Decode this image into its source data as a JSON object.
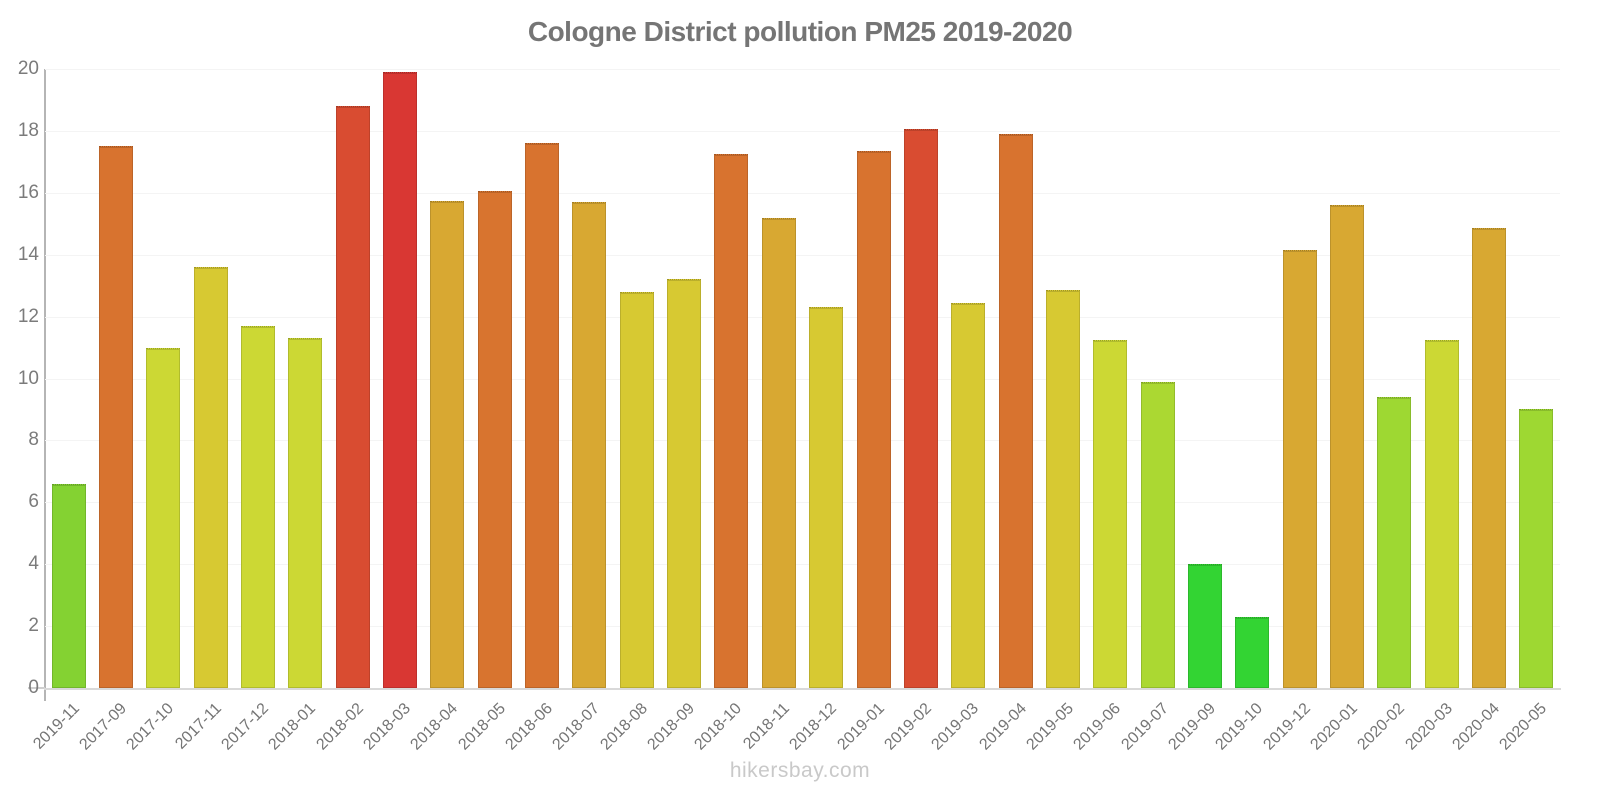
{
  "page": {
    "title": "Cologne District pollution PM25 2019-2020",
    "watermark": "hikersbay.com"
  },
  "chart_data": {
    "type": "bar",
    "title": "Cologne District pollution PM25 2019-2020",
    "categories": [
      "2019-11",
      "2017-09",
      "2017-10",
      "2017-11",
      "2017-12",
      "2018-01",
      "2018-02",
      "2018-03",
      "2018-04",
      "2018-05",
      "2018-06",
      "2018-07",
      "2018-08",
      "2018-09",
      "2018-10",
      "2018-11",
      "2018-12",
      "2019-01",
      "2019-02",
      "2019-03",
      "2019-04",
      "2019-05",
      "2019-06",
      "2019-07",
      "2019-09",
      "2019-10",
      "2019-12",
      "2020-01",
      "2020-02",
      "2020-03",
      "2020-04",
      "2020-05"
    ],
    "values": [
      6.6,
      17.5,
      11.0,
      13.6,
      11.7,
      11.3,
      18.8,
      19.9,
      15.75,
      16.05,
      17.6,
      15.7,
      12.8,
      13.2,
      17.25,
      15.2,
      12.3,
      17.35,
      18.05,
      12.45,
      17.9,
      12.85,
      11.25,
      9.9,
      4.0,
      2.3,
      14.15,
      15.6,
      9.4,
      11.25,
      14.85,
      9.0
    ],
    "bar_colors": [
      "#84d232",
      "#d8732f",
      "#ccd834",
      "#d7c932",
      "#ccd834",
      "#ccd834",
      "#d94c31",
      "#d93733",
      "#d8a832",
      "#d8742f",
      "#d8732f",
      "#d8a832",
      "#d7c932",
      "#d7c932",
      "#d8732f",
      "#d8a832",
      "#d7c932",
      "#d8732f",
      "#d94c31",
      "#d7c932",
      "#d8732f",
      "#d7c932",
      "#ccd834",
      "#abd832",
      "#33d433",
      "#33d433",
      "#d8a832",
      "#d8a832",
      "#9ed832",
      "#ccd834",
      "#d8a832",
      "#9ed832"
    ],
    "xlabel": "",
    "ylabel": "",
    "ylim": [
      0,
      20
    ],
    "yticks": [
      0,
      2,
      4,
      6,
      8,
      10,
      12,
      14,
      16,
      18,
      20
    ],
    "grid": "faint horizontal gridlines at even values",
    "legend_position": "none",
    "x_tick_style": "rotated 45deg",
    "colors": {
      "title_text": "#757575",
      "axis_line": "#b5b5b5",
      "baseline": "#d9d9d9",
      "tick_text": "#7b7b7b",
      "watermark_text": "#c9c9c9",
      "scale_green": "#33d433",
      "scale_lime": "#ccd834",
      "scale_yellow": "#d7c932",
      "scale_gold": "#d8a832",
      "scale_orange": "#d8732f",
      "scale_red": "#d93733"
    }
  }
}
